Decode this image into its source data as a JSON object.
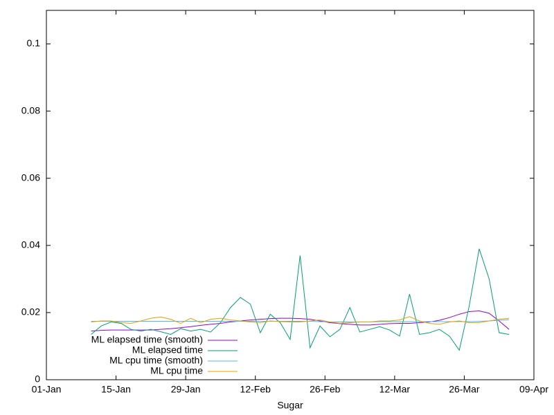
{
  "chart_data": {
    "type": "line",
    "xlabel": "Sugar",
    "xlim": [
      1,
      99
    ],
    "xticks": [
      {
        "value": 1,
        "label": "01-Jan"
      },
      {
        "value": 15,
        "label": "15-Jan"
      },
      {
        "value": 29,
        "label": "29-Jan"
      },
      {
        "value": 43,
        "label": "12-Feb"
      },
      {
        "value": 57,
        "label": "26-Feb"
      },
      {
        "value": 71,
        "label": "12-Mar"
      },
      {
        "value": 85,
        "label": "26-Mar"
      },
      {
        "value": 99,
        "label": "09-Apr"
      }
    ],
    "ylim": [
      0,
      0.11
    ],
    "yticks": [
      0,
      0.02,
      0.04,
      0.06,
      0.08,
      0.1
    ],
    "legend": "bottom-left",
    "x": [
      10,
      12,
      14,
      16,
      18,
      20,
      22,
      24,
      26,
      28,
      30,
      32,
      34,
      36,
      38,
      40,
      42,
      44,
      46,
      48,
      50,
      52,
      54,
      56,
      58,
      60,
      62,
      64,
      66,
      68,
      70,
      72,
      74,
      76,
      78,
      80,
      82,
      84,
      86,
      88,
      90,
      92,
      94
    ],
    "series": [
      {
        "name": "ML elapsed time (smooth)",
        "color": "#9400d3",
        "values": [
          0.0145,
          0.0147,
          0.0148,
          0.0148,
          0.0148,
          0.0148,
          0.0148,
          0.015,
          0.0152,
          0.0155,
          0.0158,
          0.0162,
          0.0165,
          0.0168,
          0.0172,
          0.0175,
          0.0178,
          0.018,
          0.0182,
          0.0183,
          0.0183,
          0.0182,
          0.018,
          0.0175,
          0.017,
          0.0167,
          0.0165,
          0.0163,
          0.0163,
          0.0165,
          0.0167,
          0.0168,
          0.0168,
          0.017,
          0.0172,
          0.0177,
          0.0185,
          0.0195,
          0.0203,
          0.0205,
          0.0198,
          0.0175,
          0.015
        ]
      },
      {
        "name": "ML elapsed time",
        "color": "#009e73",
        "values": [
          0.0135,
          0.016,
          0.0172,
          0.0168,
          0.015,
          0.0145,
          0.015,
          0.0143,
          0.0135,
          0.0152,
          0.0145,
          0.015,
          0.0142,
          0.017,
          0.0215,
          0.0245,
          0.0225,
          0.014,
          0.0195,
          0.017,
          0.012,
          0.037,
          0.0095,
          0.016,
          0.0128,
          0.015,
          0.0215,
          0.0142,
          0.015,
          0.0158,
          0.0148,
          0.013,
          0.0255,
          0.0135,
          0.014,
          0.015,
          0.013,
          0.0088,
          0.022,
          0.039,
          0.03,
          0.014,
          0.0135
        ]
      },
      {
        "name": "ML cpu time (smooth)",
        "color": "#56b4e9",
        "values": [
          0.0174,
          0.0174,
          0.0174,
          0.0174,
          0.0174,
          0.0174,
          0.0174,
          0.0174,
          0.0174,
          0.0174,
          0.0174,
          0.0174,
          0.0174,
          0.0174,
          0.0174,
          0.0174,
          0.0174,
          0.0174,
          0.0174,
          0.0174,
          0.0174,
          0.0174,
          0.0174,
          0.0173,
          0.0172,
          0.0172,
          0.0172,
          0.0172,
          0.0172,
          0.0173,
          0.0173,
          0.0173,
          0.0173,
          0.0173,
          0.0173,
          0.0173,
          0.0173,
          0.0173,
          0.0173,
          0.0174,
          0.0175,
          0.0177,
          0.0179
        ]
      },
      {
        "name": "ML cpu time",
        "color": "#e69f00",
        "values": [
          0.0172,
          0.0175,
          0.0175,
          0.017,
          0.0168,
          0.0175,
          0.0183,
          0.0187,
          0.018,
          0.0168,
          0.0183,
          0.017,
          0.018,
          0.0183,
          0.0178,
          0.0175,
          0.0172,
          0.017,
          0.0175,
          0.0173,
          0.0172,
          0.0172,
          0.0175,
          0.0178,
          0.0172,
          0.0168,
          0.017,
          0.0172,
          0.0172,
          0.0175,
          0.0175,
          0.0178,
          0.0188,
          0.0175,
          0.0168,
          0.0165,
          0.0172,
          0.0175,
          0.017,
          0.017,
          0.0175,
          0.018,
          0.0183
        ]
      }
    ]
  }
}
